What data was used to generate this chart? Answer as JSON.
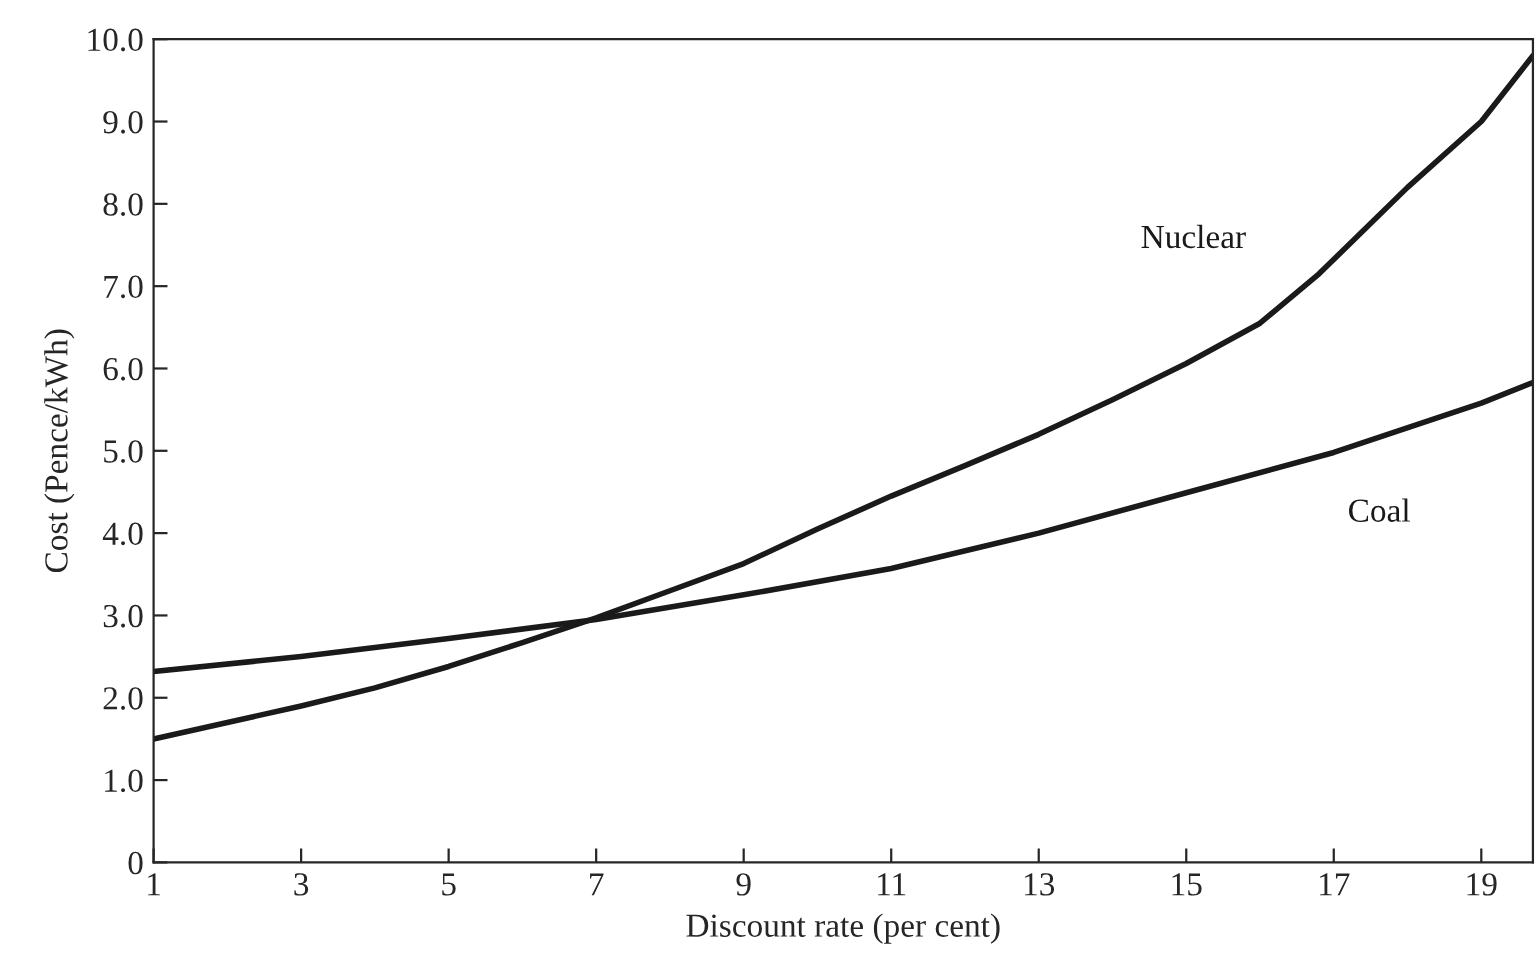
{
  "chart_data": {
    "type": "line",
    "xlabel": "Discount rate (per cent)",
    "ylabel": "Cost (Pence/kWh)",
    "xlim": [
      1,
      19.7
    ],
    "ylim": [
      0,
      10
    ],
    "xticks": [
      1,
      3,
      5,
      7,
      9,
      11,
      13,
      15,
      17,
      19
    ],
    "yticks": [
      0,
      {
        "value": 1,
        "label": "1.0"
      },
      {
        "value": 2,
        "label": "2.0"
      },
      {
        "value": 3,
        "label": "3.0"
      },
      {
        "value": 4,
        "label": "4.0"
      },
      {
        "value": 5,
        "label": "5.0"
      },
      {
        "value": 6,
        "label": "6.0"
      },
      {
        "value": 7,
        "label": "7.0"
      },
      {
        "value": 8,
        "label": "8.0"
      },
      {
        "value": 9,
        "label": "9.0"
      },
      {
        "value": 10,
        "label": "10.0"
      }
    ],
    "grid": false,
    "legend": false,
    "marker": "none",
    "line_style": "solid",
    "series": [
      {
        "name": "Nuclear",
        "color": "#1a1a1a",
        "x": [
          1,
          2,
          3,
          4,
          5,
          6,
          7,
          8,
          9,
          10,
          11,
          12,
          13,
          14,
          15,
          16,
          16.8,
          18,
          19,
          19.7
        ],
        "values": [
          1.5,
          1.7,
          1.9,
          2.12,
          2.38,
          2.67,
          2.97,
          3.3,
          3.63,
          4.05,
          4.45,
          4.82,
          5.2,
          5.62,
          6.06,
          6.55,
          7.15,
          8.2,
          9.0,
          9.8
        ]
      },
      {
        "name": "Coal",
        "color": "#1a1a1a",
        "x": [
          1,
          3,
          5,
          7,
          9,
          11,
          13,
          15,
          17,
          19,
          19.7
        ],
        "values": [
          2.32,
          2.5,
          2.72,
          2.95,
          3.25,
          3.57,
          4.0,
          4.49,
          4.98,
          5.58,
          5.83
        ]
      }
    ]
  }
}
